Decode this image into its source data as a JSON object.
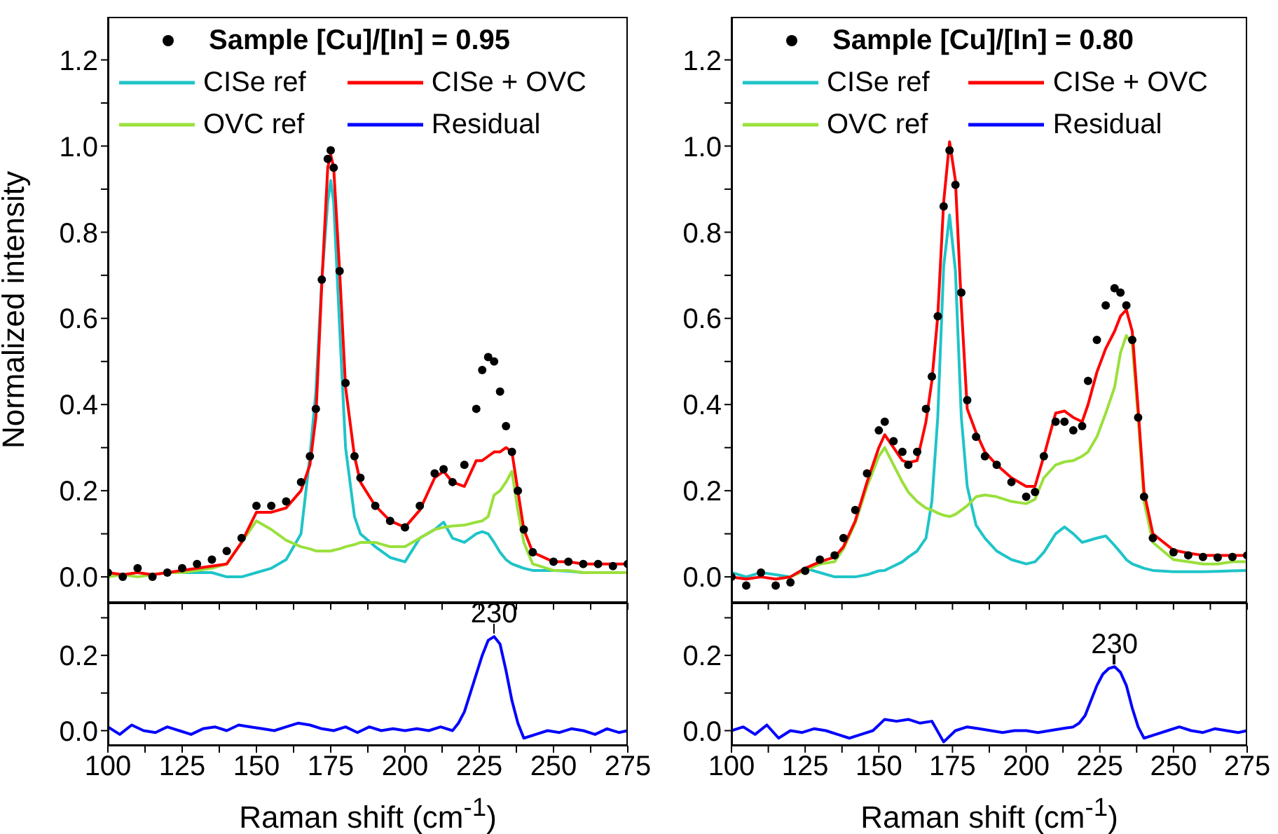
{
  "chart_data": [
    {
      "type": "line",
      "ylabel": "Normalized intensity",
      "legend": "top",
      "tick_labels": "y",
      "xlim": [
        100,
        275
      ],
      "ylim": [
        -0.06,
        1.3
      ],
      "xticks": [
        100,
        {
          "value": 112.5,
          "label": null
        },
        125,
        {
          "value": 137.5,
          "label": null
        },
        150,
        {
          "value": 162.5,
          "label": null
        },
        175,
        {
          "value": 187.5,
          "label": null
        },
        200,
        {
          "value": 212.5,
          "label": null
        },
        225,
        {
          "value": 237.5,
          "label": null
        },
        250,
        {
          "value": 262.5,
          "label": null
        },
        275
      ],
      "yticks": [
        {
          "value": 0,
          "label": "0.0"
        },
        {
          "value": 0.1,
          "label": null
        },
        0.2,
        {
          "value": 0.3,
          "label": null
        },
        0.4,
        {
          "value": 0.5,
          "label": null
        },
        0.6,
        {
          "value": 0.7,
          "label": null
        },
        0.8,
        {
          "value": 0.9,
          "label": null
        },
        {
          "value": 1,
          "label": "1.0"
        },
        {
          "value": 1.1,
          "label": null
        },
        1.2
      ],
      "x": [
        100,
        105,
        110,
        115,
        120,
        125,
        130,
        135,
        140,
        145,
        150,
        155,
        160,
        165,
        168,
        170,
        172,
        174,
        175,
        176,
        178,
        180,
        183,
        185,
        190,
        195,
        200,
        205,
        210,
        213,
        216,
        220,
        224,
        226,
        228,
        230,
        232,
        234,
        236,
        238,
        240,
        243,
        250,
        255,
        260,
        265,
        270,
        275
      ],
      "series": [
        {
          "name": "Sample [Cu]/[In] = 0.95",
          "type": "scatter",
          "marker": "circle",
          "color": "#000000",
          "values": [
            0.01,
            0.0,
            0.02,
            0.0,
            0.01,
            0.02,
            0.03,
            0.04,
            0.06,
            0.09,
            0.165,
            0.165,
            0.175,
            0.22,
            0.28,
            0.39,
            0.69,
            0.97,
            0.99,
            0.95,
            0.71,
            0.45,
            0.28,
            0.23,
            0.165,
            0.13,
            0.115,
            0.165,
            0.24,
            0.25,
            0.22,
            0.26,
            0.39,
            0.48,
            0.51,
            0.5,
            0.43,
            0.35,
            0.29,
            0.2,
            0.11,
            0.057,
            0.035,
            0.035,
            0.03,
            0.03,
            0.025,
            0.03
          ]
        },
        {
          "name": "CISe ref",
          "color": "#1fc4c8",
          "values": [
            null,
            null,
            null,
            null,
            0.01,
            0.01,
            0.01,
            0.01,
            0.0,
            0.0,
            0.01,
            0.02,
            0.04,
            0.1,
            0.28,
            0.43,
            0.69,
            0.87,
            0.92,
            0.87,
            0.58,
            0.3,
            0.14,
            0.1,
            0.07,
            0.045,
            0.035,
            0.09,
            0.11,
            0.127,
            0.09,
            0.08,
            0.1,
            0.105,
            0.1,
            0.08,
            0.057,
            0.04,
            0.03,
            0.025,
            0.02,
            0.015,
            0.015,
            0.013,
            0.01,
            0.01,
            null,
            null
          ]
        },
        {
          "name": "OVC ref",
          "color": "#9ae03c",
          "values": [
            0.0,
            0.005,
            0.0,
            0.005,
            0.01,
            0.01,
            0.015,
            0.02,
            0.03,
            0.08,
            0.13,
            0.11,
            0.085,
            0.07,
            0.065,
            0.06,
            0.06,
            0.06,
            0.06,
            0.062,
            0.065,
            0.07,
            0.075,
            0.08,
            0.08,
            0.07,
            0.07,
            0.09,
            0.11,
            0.115,
            0.118,
            0.12,
            0.127,
            0.13,
            0.14,
            0.19,
            0.2,
            0.22,
            0.245,
            0.155,
            0.08,
            0.03,
            0.015,
            0.015,
            0.01,
            0.01,
            0.01,
            0.01
          ]
        },
        {
          "name": "CISe + OVC",
          "color": "#ff0000",
          "values": [
            0.01,
            0.005,
            0.01,
            0.005,
            0.01,
            0.015,
            0.02,
            0.025,
            0.03,
            0.08,
            0.15,
            0.15,
            0.16,
            0.2,
            0.26,
            0.37,
            0.68,
            0.95,
            0.98,
            0.95,
            0.71,
            0.44,
            0.28,
            0.22,
            0.165,
            0.13,
            0.115,
            0.155,
            0.23,
            0.245,
            0.22,
            0.21,
            0.27,
            0.27,
            0.28,
            0.29,
            0.29,
            0.3,
            0.29,
            0.2,
            0.11,
            0.057,
            0.035,
            0.035,
            0.03,
            0.03,
            0.03,
            0.03
          ]
        }
      ]
    },
    {
      "type": "line",
      "legend": "top",
      "tick_labels": "y",
      "xlim": [
        100,
        275
      ],
      "ylim": [
        -0.06,
        1.3
      ],
      "xticks": [
        100,
        {
          "value": 112.5,
          "label": null
        },
        125,
        {
          "value": 137.5,
          "label": null
        },
        150,
        {
          "value": 162.5,
          "label": null
        },
        175,
        {
          "value": 187.5,
          "label": null
        },
        200,
        {
          "value": 212.5,
          "label": null
        },
        225,
        {
          "value": 237.5,
          "label": null
        },
        250,
        {
          "value": 262.5,
          "label": null
        },
        275
      ],
      "yticks": [
        {
          "value": 0,
          "label": "0.0"
        },
        {
          "value": 0.1,
          "label": null
        },
        0.2,
        {
          "value": 0.3,
          "label": null
        },
        0.4,
        {
          "value": 0.5,
          "label": null
        },
        0.6,
        {
          "value": 0.7,
          "label": null
        },
        0.8,
        {
          "value": 0.9,
          "label": null
        },
        {
          "value": 1,
          "label": "1.0"
        },
        {
          "value": 1.1,
          "label": null
        },
        1.2
      ],
      "x": [
        100,
        105,
        110,
        115,
        120,
        125,
        130,
        135,
        138,
        142,
        146,
        150,
        152,
        155,
        158,
        160,
        163,
        166,
        168,
        170,
        172,
        174,
        176,
        178,
        180,
        183,
        186,
        190,
        195,
        200,
        203,
        206,
        210,
        213,
        216,
        219,
        221,
        224,
        227,
        230,
        232,
        234,
        236,
        238,
        240,
        243,
        250,
        255,
        260,
        265,
        270,
        275
      ],
      "series": [
        {
          "name": "Sample [Cu]/[In] = 0.80",
          "type": "scatter",
          "marker": "circle",
          "color": "#000000",
          "values": [
            0.0,
            -0.02,
            0.01,
            -0.02,
            -0.013,
            0.014,
            0.04,
            0.05,
            0.09,
            0.155,
            0.24,
            0.34,
            0.36,
            0.315,
            0.29,
            0.26,
            0.29,
            0.39,
            0.465,
            0.605,
            0.86,
            0.99,
            0.91,
            0.66,
            0.41,
            0.325,
            0.28,
            0.26,
            0.22,
            0.186,
            0.197,
            0.28,
            0.36,
            0.36,
            0.34,
            0.35,
            0.455,
            0.55,
            0.63,
            0.67,
            0.66,
            0.63,
            0.55,
            0.37,
            0.186,
            0.09,
            0.057,
            0.05,
            0.046,
            0.045,
            0.046,
            0.05
          ]
        },
        {
          "name": "CISe ref",
          "color": "#1fc4c8",
          "values": [
            0.01,
            0.0,
            0.01,
            0.005,
            0.0,
            0.02,
            0.01,
            0.0,
            0.0,
            0.0,
            0.005,
            0.014,
            0.015,
            0.025,
            0.035,
            0.046,
            0.06,
            0.09,
            0.175,
            0.37,
            0.72,
            0.84,
            0.71,
            0.37,
            0.21,
            0.12,
            0.09,
            0.06,
            0.04,
            0.03,
            0.035,
            0.057,
            0.1,
            0.116,
            0.1,
            0.08,
            0.084,
            0.09,
            0.095,
            0.073,
            0.057,
            0.04,
            0.03,
            0.025,
            0.02,
            0.015,
            0.012,
            0.012,
            0.012,
            0.013,
            0.014,
            0.015
          ]
        },
        {
          "name": "OVC ref",
          "color": "#9ae03c",
          "values": [
            null,
            null,
            null,
            -0.005,
            0.0,
            0.015,
            0.03,
            0.035,
            0.065,
            0.125,
            0.21,
            0.28,
            0.3,
            0.26,
            0.22,
            0.197,
            0.175,
            0.16,
            0.155,
            0.148,
            0.143,
            0.14,
            0.145,
            0.155,
            0.165,
            0.186,
            0.19,
            0.186,
            0.175,
            0.17,
            0.18,
            0.23,
            0.26,
            0.267,
            0.27,
            0.28,
            0.29,
            0.325,
            0.38,
            0.44,
            0.52,
            0.56,
            0.54,
            0.37,
            0.175,
            0.08,
            0.04,
            0.035,
            0.03,
            0.03,
            0.035,
            0.035
          ]
        },
        {
          "name": "CISe + OVC",
          "color": "#ff0000",
          "values": [
            0.0,
            -0.005,
            0.0,
            -0.005,
            0.0,
            0.02,
            0.035,
            0.046,
            0.07,
            0.13,
            0.22,
            0.3,
            0.33,
            0.3,
            0.27,
            0.265,
            0.27,
            0.36,
            0.455,
            0.605,
            0.87,
            1.01,
            0.92,
            0.63,
            0.39,
            0.335,
            0.29,
            0.26,
            0.23,
            0.21,
            0.21,
            0.28,
            0.38,
            0.385,
            0.37,
            0.36,
            0.4,
            0.475,
            0.53,
            0.57,
            0.605,
            0.62,
            0.57,
            0.39,
            0.197,
            0.1,
            0.062,
            0.055,
            0.05,
            0.05,
            0.05,
            0.05
          ]
        }
      ]
    },
    {
      "type": "line",
      "xlabel": "Raman shift (cm$^{-1}$)",
      "xlim": [
        100,
        275
      ],
      "ylim": [
        -0.04,
        0.34
      ],
      "xticks": [
        100,
        {
          "value": 112.5,
          "label": null
        },
        125,
        {
          "value": 137.5,
          "label": null
        },
        150,
        {
          "value": 162.5,
          "label": null
        },
        175,
        {
          "value": 187.5,
          "label": null
        },
        200,
        {
          "value": 212.5,
          "label": null
        },
        225,
        {
          "value": 237.5,
          "label": null
        },
        250,
        {
          "value": 262.5,
          "label": null
        },
        275
      ],
      "yticks": [
        {
          "value": 0,
          "label": "0.0"
        },
        {
          "value": 0.1,
          "label": null
        },
        0.2,
        {
          "value": 0.3,
          "label": null
        }
      ],
      "annotations": [
        {
          "text": "230",
          "x": 230,
          "y": 0.25
        }
      ],
      "x": [
        100,
        104,
        108,
        112,
        116,
        120,
        124,
        128,
        132,
        136,
        140,
        144,
        148,
        152,
        156,
        160,
        164,
        168,
        172,
        176,
        180,
        184,
        188,
        192,
        196,
        200,
        204,
        208,
        212,
        216,
        218,
        220,
        222,
        224,
        226,
        228,
        230,
        232,
        234,
        236,
        238,
        240,
        244,
        248,
        252,
        256,
        260,
        264,
        268,
        272,
        275
      ],
      "series": [
        {
          "name": "Residual",
          "color": "#0000ff",
          "values": [
            0.01,
            -0.01,
            0.015,
            0.0,
            -0.005,
            0.01,
            0.0,
            -0.01,
            0.005,
            0.01,
            0.0,
            0.015,
            0.01,
            0.005,
            0.0,
            0.01,
            0.02,
            0.015,
            0.005,
            0.0,
            0.01,
            -0.005,
            0.01,
            0.0,
            0.005,
            0.0,
            0.005,
            0.0,
            0.01,
            0.0,
            0.02,
            0.05,
            0.1,
            0.15,
            0.2,
            0.24,
            0.25,
            0.23,
            0.16,
            0.08,
            0.02,
            -0.02,
            -0.01,
            0.0,
            -0.005,
            0.005,
            0.0,
            -0.01,
            0.005,
            -0.005,
            0.0
          ]
        }
      ]
    },
    {
      "type": "line",
      "xlabel": "Raman shift (cm$^{-1}$)",
      "xlim": [
        100,
        275
      ],
      "ylim": [
        -0.04,
        0.34
      ],
      "xticks": [
        100,
        {
          "value": 112.5,
          "label": null
        },
        125,
        {
          "value": 137.5,
          "label": null
        },
        150,
        {
          "value": 162.5,
          "label": null
        },
        175,
        {
          "value": 187.5,
          "label": null
        },
        200,
        {
          "value": 212.5,
          "label": null
        },
        225,
        {
          "value": 237.5,
          "label": null
        },
        250,
        {
          "value": 262.5,
          "label": null
        },
        275
      ],
      "yticks": [
        {
          "value": 0,
          "label": "0.0"
        },
        {
          "value": 0.1,
          "label": null
        },
        0.2,
        {
          "value": 0.3,
          "label": null
        }
      ],
      "annotations": [
        {
          "text": "230",
          "x": 230,
          "y": 0.17
        }
      ],
      "x": [
        100,
        104,
        108,
        112,
        116,
        120,
        124,
        128,
        132,
        136,
        140,
        144,
        148,
        152,
        156,
        160,
        164,
        168,
        172,
        176,
        180,
        184,
        188,
        192,
        196,
        200,
        204,
        208,
        212,
        216,
        218,
        220,
        222,
        224,
        226,
        228,
        230,
        232,
        234,
        236,
        238,
        240,
        244,
        248,
        252,
        256,
        260,
        264,
        268,
        272,
        275
      ],
      "series": [
        {
          "name": "Residual",
          "color": "#0000ff",
          "values": [
            0.0,
            0.01,
            -0.01,
            0.015,
            -0.02,
            0.0,
            -0.005,
            0.005,
            0.0,
            -0.01,
            -0.02,
            -0.01,
            0.0,
            0.03,
            0.025,
            0.03,
            0.02,
            0.025,
            -0.03,
            0.0,
            0.01,
            0.005,
            0.0,
            -0.005,
            0.0,
            0.0,
            -0.005,
            0.0,
            0.005,
            0.01,
            0.02,
            0.04,
            0.08,
            0.12,
            0.15,
            0.165,
            0.17,
            0.155,
            0.12,
            0.06,
            0.01,
            -0.02,
            -0.01,
            0.0,
            0.01,
            0.0,
            -0.005,
            0.005,
            0.0,
            -0.005,
            0.0
          ]
        }
      ]
    }
  ]
}
